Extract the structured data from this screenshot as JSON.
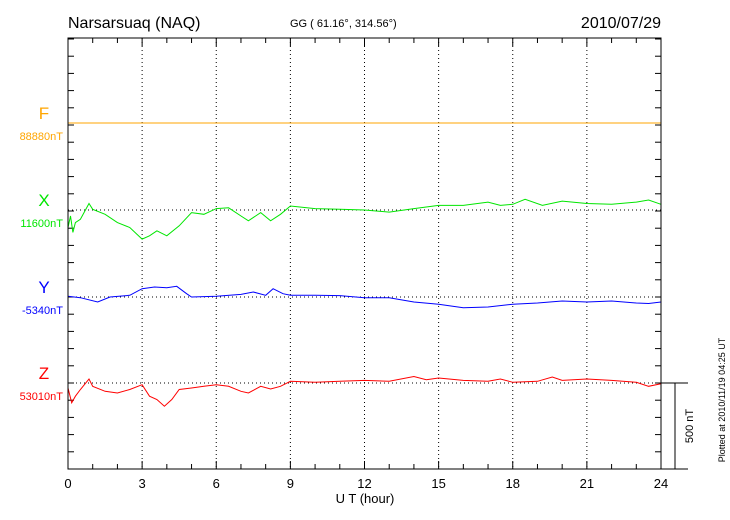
{
  "chart_data": {
    "type": "line",
    "title": "Narsarsuaq (NAQ)",
    "subtitle": "GG ( 61.16°, 314.56°)",
    "date": "2010/07/29",
    "xlabel": "U T (hour)",
    "xlim": [
      0,
      24
    ],
    "xticks": [
      "0",
      "3",
      "6",
      "9",
      "12",
      "15",
      "18",
      "21",
      "24"
    ],
    "scale_label": "500 nT",
    "scale_nT": 500,
    "footer": "Plotted at 2010/11/19 04:25 UT",
    "grid": true,
    "series": [
      {
        "name": "F",
        "baseline_label": "88880nT",
        "color": "#ffa500",
        "x": [
          0,
          24
        ],
        "deviation_nT": [
          0,
          0
        ]
      },
      {
        "name": "X",
        "baseline_label": "11600nT",
        "color": "#00e600",
        "x": [
          0,
          0.1,
          0.2,
          0.3,
          0.5,
          0.85,
          1.0,
          1.5,
          2.0,
          2.5,
          3.0,
          3.3,
          3.6,
          4.0,
          4.5,
          5.0,
          5.5,
          6.0,
          6.5,
          7.0,
          7.3,
          7.8,
          8.2,
          8.6,
          9,
          10,
          11,
          12,
          13,
          14,
          15,
          16,
          17,
          17.5,
          18,
          18.5,
          19.2,
          20,
          21,
          22,
          23,
          23.5,
          24
        ],
        "deviation_nT": [
          -102,
          -35,
          -130,
          -73,
          -54,
          38,
          4,
          -25,
          -73,
          -102,
          -169,
          -150,
          -121,
          -150,
          -92,
          -15,
          -25,
          8,
          13,
          -35,
          -63,
          -15,
          -63,
          -25,
          23,
          8,
          4,
          0,
          -12,
          8,
          27,
          27,
          46,
          27,
          33,
          62,
          27,
          52,
          38,
          33,
          46,
          58,
          33
        ]
      },
      {
        "name": "Y",
        "baseline_label": "-5340nT",
        "color": "#0000ff",
        "x": [
          0,
          0.5,
          1.2,
          1.7,
          2.5,
          3.0,
          3.5,
          4.0,
          4.4,
          4.8,
          5,
          6,
          7,
          7.5,
          8.0,
          8.3,
          8.7,
          9,
          10,
          11,
          12,
          13,
          14,
          15,
          16,
          17,
          18,
          19,
          20,
          21,
          22,
          23,
          23.5,
          24
        ],
        "deviation_nT": [
          4,
          -4,
          -29,
          0,
          10,
          48,
          58,
          54,
          62,
          19,
          0,
          4,
          15,
          29,
          10,
          48,
          19,
          10,
          10,
          8,
          -4,
          -4,
          -29,
          -42,
          -62,
          -58,
          -42,
          -35,
          -23,
          -29,
          -23,
          -35,
          -38,
          -29
        ]
      },
      {
        "name": "Z",
        "baseline_label": "53010nT",
        "color": "#ff0000",
        "x": [
          0,
          0.15,
          0.3,
          0.5,
          0.85,
          1.0,
          1.5,
          2,
          2.5,
          3.0,
          3.3,
          3.6,
          3.9,
          4.2,
          4.5,
          5,
          5.5,
          6,
          6.5,
          7,
          7.3,
          7.8,
          8.2,
          8.6,
          9,
          10,
          11,
          12,
          13,
          14,
          14.5,
          15,
          16,
          17,
          17.5,
          18,
          19,
          19.6,
          20,
          21,
          22,
          23,
          23.5,
          24
        ],
        "deviation_nT": [
          -29,
          -115,
          -77,
          -38,
          23,
          -19,
          -48,
          -58,
          -38,
          -10,
          -77,
          -96,
          -135,
          -96,
          -38,
          -29,
          -19,
          -10,
          -19,
          -48,
          -58,
          -19,
          -35,
          -19,
          10,
          4,
          10,
          15,
          10,
          38,
          19,
          29,
          15,
          10,
          23,
          4,
          10,
          35,
          15,
          23,
          15,
          4,
          -19,
          -4
        ]
      }
    ]
  }
}
